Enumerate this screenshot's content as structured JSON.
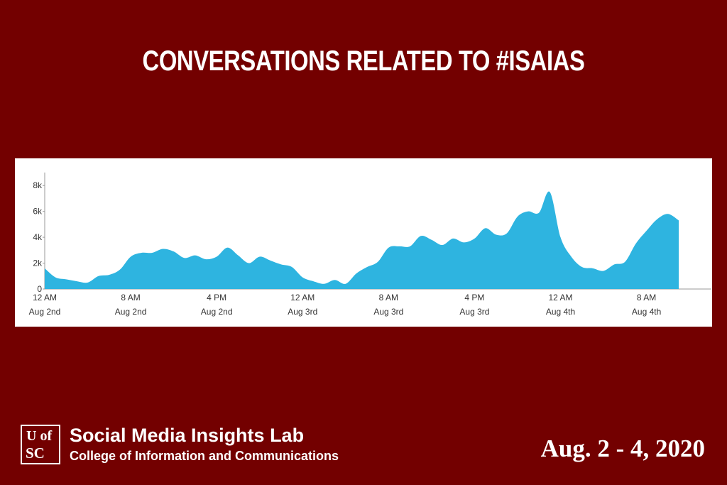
{
  "title": "CONVERSATIONS RELATED TO #ISAIAS",
  "logo": {
    "top": "U of",
    "bottom": "SC"
  },
  "lab": {
    "name": "Social Media Insights Lab",
    "subtitle": "College of Information and Communications"
  },
  "date_range": "Aug. 2 - 4, 2020",
  "colors": {
    "background": "#730000",
    "area": "#2eb4e0",
    "panel": "#ffffff"
  },
  "chart_data": {
    "type": "area",
    "xlim": [
      0,
      58
    ],
    "ylim": [
      0,
      9000
    ],
    "y_ticks": [
      {
        "value": 0,
        "label": "0"
      },
      {
        "value": 2000,
        "label": "2k"
      },
      {
        "value": 4000,
        "label": "4k"
      },
      {
        "value": 6000,
        "label": "6k"
      },
      {
        "value": 8000,
        "label": "8k"
      }
    ],
    "x_ticks": [
      {
        "value": 0,
        "time": "12 AM",
        "date": "Aug 2nd"
      },
      {
        "value": 8,
        "time": "8 AM",
        "date": "Aug 2nd"
      },
      {
        "value": 16,
        "time": "4 PM",
        "date": "Aug 2nd"
      },
      {
        "value": 24,
        "time": "12 AM",
        "date": "Aug 3rd"
      },
      {
        "value": 32,
        "time": "8 AM",
        "date": "Aug 3rd"
      },
      {
        "value": 40,
        "time": "4 PM",
        "date": "Aug 3rd"
      },
      {
        "value": 48,
        "time": "12 AM",
        "date": "Aug 4th"
      },
      {
        "value": 56,
        "time": "8 AM",
        "date": "Aug 4th"
      }
    ],
    "x": [
      0,
      1,
      2,
      3,
      4,
      5,
      6,
      7,
      8,
      9,
      10,
      11,
      12,
      13,
      14,
      15,
      16,
      17,
      18,
      19,
      20,
      21,
      22,
      23,
      24,
      25,
      26,
      27,
      28,
      29,
      30,
      31,
      32,
      33,
      34,
      35,
      36,
      37,
      38,
      39,
      40,
      41,
      42,
      43,
      44,
      45,
      46,
      47,
      48,
      49,
      50,
      51,
      52,
      53,
      54,
      55,
      56,
      57,
      58,
      59
    ],
    "values": [
      1600,
      900,
      750,
      600,
      500,
      1000,
      1100,
      1500,
      2500,
      2800,
      2800,
      3100,
      2900,
      2400,
      2600,
      2300,
      2500,
      3200,
      2600,
      2000,
      2500,
      2200,
      1900,
      1700,
      900,
      600,
      400,
      700,
      400,
      1200,
      1700,
      2100,
      3200,
      3300,
      3300,
      4100,
      3800,
      3400,
      3900,
      3600,
      3900,
      4700,
      4200,
      4300,
      5600,
      6000,
      5900,
      7500,
      4000,
      2500,
      1700,
      1600,
      1400,
      1900,
      2100,
      3500,
      4500,
      5400,
      5800,
      5300
    ]
  }
}
